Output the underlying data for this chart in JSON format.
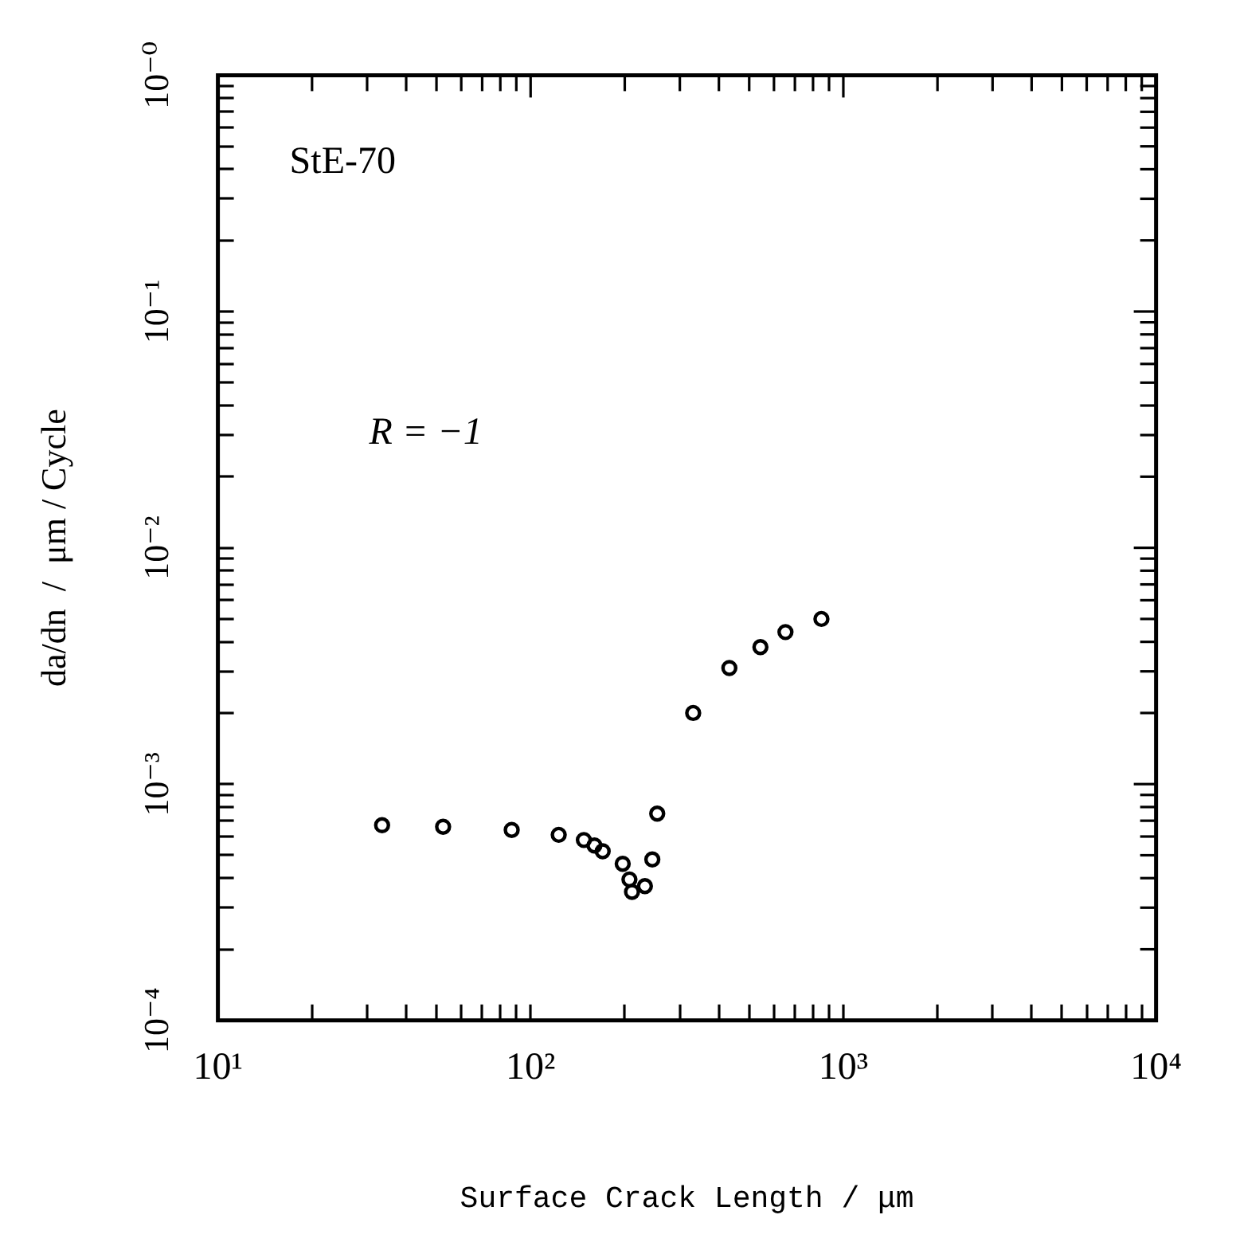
{
  "chart_data": {
    "type": "scatter",
    "xlabel": "Surface Crack Length / μm",
    "ylabel": "da/dn  /  μm / Cycle",
    "annotations": [
      "StE-70",
      "R = −1"
    ],
    "log": "xy",
    "grid": false,
    "legend": false,
    "marker": "circle",
    "xlim": [
      10,
      10000
    ],
    "xticks": [
      {
        "value": 10,
        "label": "10¹"
      },
      {
        "value": 20,
        "label": null
      },
      {
        "value": 30,
        "label": null
      },
      {
        "value": 40,
        "label": null
      },
      {
        "value": 50,
        "label": null
      },
      {
        "value": 60,
        "label": null
      },
      {
        "value": 70,
        "label": null
      },
      {
        "value": 80,
        "label": null
      },
      {
        "value": 90,
        "label": null
      },
      {
        "value": 100,
        "label": "10²"
      },
      {
        "value": 200,
        "label": null
      },
      {
        "value": 300,
        "label": null
      },
      {
        "value": 400,
        "label": null
      },
      {
        "value": 500,
        "label": null
      },
      {
        "value": 600,
        "label": null
      },
      {
        "value": 700,
        "label": null
      },
      {
        "value": 800,
        "label": null
      },
      {
        "value": 900,
        "label": null
      },
      {
        "value": 1000,
        "label": "10³"
      },
      {
        "value": 2000,
        "label": null
      },
      {
        "value": 3000,
        "label": null
      },
      {
        "value": 4000,
        "label": null
      },
      {
        "value": 5000,
        "label": null
      },
      {
        "value": 6000,
        "label": null
      },
      {
        "value": 7000,
        "label": null
      },
      {
        "value": 8000,
        "label": null
      },
      {
        "value": 9000,
        "label": null
      },
      {
        "value": 10000,
        "label": "10⁴"
      }
    ],
    "ylim": [
      0.0001,
      1
    ],
    "yticks": [
      {
        "value": 0.0001,
        "label": "10⁻⁴"
      },
      {
        "value": 0.0002,
        "label": null
      },
      {
        "value": 0.0003,
        "label": null
      },
      {
        "value": 0.0004,
        "label": null
      },
      {
        "value": 0.0005,
        "label": null
      },
      {
        "value": 0.0006,
        "label": null
      },
      {
        "value": 0.0007,
        "label": null
      },
      {
        "value": 0.0008,
        "label": null
      },
      {
        "value": 0.0009,
        "label": null
      },
      {
        "value": 0.001,
        "label": "10⁻³"
      },
      {
        "value": 0.002,
        "label": null
      },
      {
        "value": 0.003,
        "label": null
      },
      {
        "value": 0.004,
        "label": null
      },
      {
        "value": 0.005,
        "label": null
      },
      {
        "value": 0.006,
        "label": null
      },
      {
        "value": 0.007,
        "label": null
      },
      {
        "value": 0.008,
        "label": null
      },
      {
        "value": 0.009,
        "label": null
      },
      {
        "value": 0.01,
        "label": "10⁻²"
      },
      {
        "value": 0.02,
        "label": null
      },
      {
        "value": 0.03,
        "label": null
      },
      {
        "value": 0.04,
        "label": null
      },
      {
        "value": 0.05,
        "label": null
      },
      {
        "value": 0.06,
        "label": null
      },
      {
        "value": 0.07,
        "label": null
      },
      {
        "value": 0.08,
        "label": null
      },
      {
        "value": 0.09,
        "label": null
      },
      {
        "value": 0.1,
        "label": "10⁻¹"
      },
      {
        "value": 0.2,
        "label": null
      },
      {
        "value": 0.3,
        "label": null
      },
      {
        "value": 0.4,
        "label": null
      },
      {
        "value": 0.5,
        "label": null
      },
      {
        "value": 0.6,
        "label": null
      },
      {
        "value": 0.7,
        "label": null
      },
      {
        "value": 0.8,
        "label": null
      },
      {
        "value": 0.9,
        "label": null
      },
      {
        "value": 1,
        "label": "10⁻⁰"
      }
    ],
    "series": [
      {
        "color": "#000000",
        "x": [
          33.5,
          52.5,
          87,
          123,
          148,
          160,
          170,
          197,
          245,
          254,
          207,
          211,
          232,
          331,
          432,
          543,
          653,
          851
        ],
        "values": [
          0.00067,
          0.00066,
          0.00064,
          0.00061,
          0.00058,
          0.00055,
          0.00052,
          0.00046,
          0.00048,
          0.00075,
          0.000395,
          0.00035,
          0.00037,
          0.002,
          0.0031,
          0.0038,
          0.0044,
          0.005
        ]
      }
    ]
  }
}
